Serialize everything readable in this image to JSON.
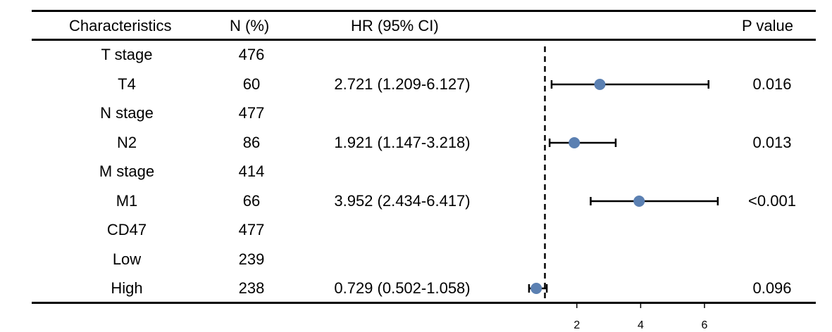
{
  "headers": {
    "characteristics": "Characteristics",
    "n": "N (%)",
    "hr": "HR (95% CI)",
    "p": "P value"
  },
  "rows": [
    {
      "name": "T stage",
      "n": "476",
      "hr_text": "",
      "p": ""
    },
    {
      "name": "T4",
      "n": "60",
      "hr_text": "2.721 (1.209-6.127)",
      "p": "0.016"
    },
    {
      "name": "N stage",
      "n": "477",
      "hr_text": "",
      "p": ""
    },
    {
      "name": "N2",
      "n": "86",
      "hr_text": "1.921 (1.147-3.218)",
      "p": "0.013"
    },
    {
      "name": "M stage",
      "n": "414",
      "hr_text": "",
      "p": ""
    },
    {
      "name": "M1",
      "n": "66",
      "hr_text": "3.952 (2.434-6.417)",
      "p": "<0.001"
    },
    {
      "name": "CD47",
      "n": "477",
      "hr_text": "",
      "p": ""
    },
    {
      "name": "Low",
      "n": "239",
      "hr_text": "",
      "p": ""
    },
    {
      "name": "High",
      "n": "238",
      "hr_text": "0.729 (0.502-1.058)",
      "p": "0.096"
    }
  ],
  "chart_data": {
    "type": "scatter",
    "x_ticks": [
      2,
      4,
      6
    ],
    "reference_line": 1,
    "reference_style": "dashed",
    "point_color": "#5b80b2",
    "points": [
      {
        "label": "T4",
        "hr": 2.721,
        "lower": 1.209,
        "upper": 6.127
      },
      {
        "label": "N2",
        "hr": 1.921,
        "lower": 1.147,
        "upper": 3.218
      },
      {
        "label": "M1",
        "hr": 3.952,
        "lower": 2.434,
        "upper": 6.417
      },
      {
        "label": "High",
        "hr": 0.729,
        "lower": 0.502,
        "upper": 1.058
      }
    ]
  }
}
